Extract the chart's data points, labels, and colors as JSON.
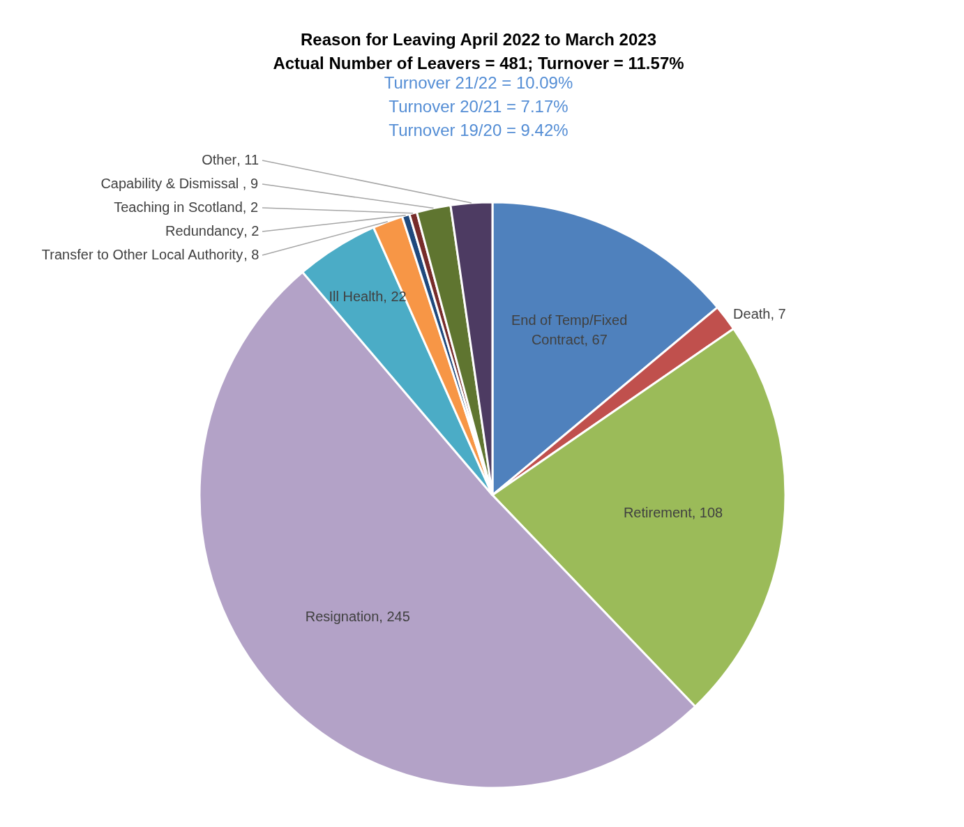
{
  "chart_data": {
    "type": "pie",
    "title": "Reason for Leaving April 2022 to March 2023\nActual Number of Leavers = 481; Turnover = 11.57%",
    "annotations": [
      "Turnover 21/22 = 10.09%",
      "Turnover 20/21 = 7.17%",
      "Turnover 19/20 = 9.42%"
    ],
    "categories": [
      "End of Temp/Fixed Contract",
      "Death",
      "Retirement",
      "Resignation",
      "Ill Health",
      "Transfer to Other Local Authority",
      "Redundancy",
      "Teaching in Scotland",
      "Capability & Dismissal ",
      "Other"
    ],
    "values": [
      67,
      7,
      108,
      245,
      22,
      8,
      2,
      2,
      9,
      11
    ],
    "colors": [
      "#4f81bd",
      "#c0504d",
      "#9bbb59",
      "#b3a2c7",
      "#4bacc6",
      "#f79646",
      "#1f497d",
      "#772c2a",
      "#5f7530",
      "#4d3b62"
    ],
    "value_labels": [
      ", 67",
      ", 7",
      ", 108",
      ", 245",
      ", 22",
      ", 8",
      ", 2",
      ", 2",
      ", 9",
      ", 11"
    ]
  }
}
